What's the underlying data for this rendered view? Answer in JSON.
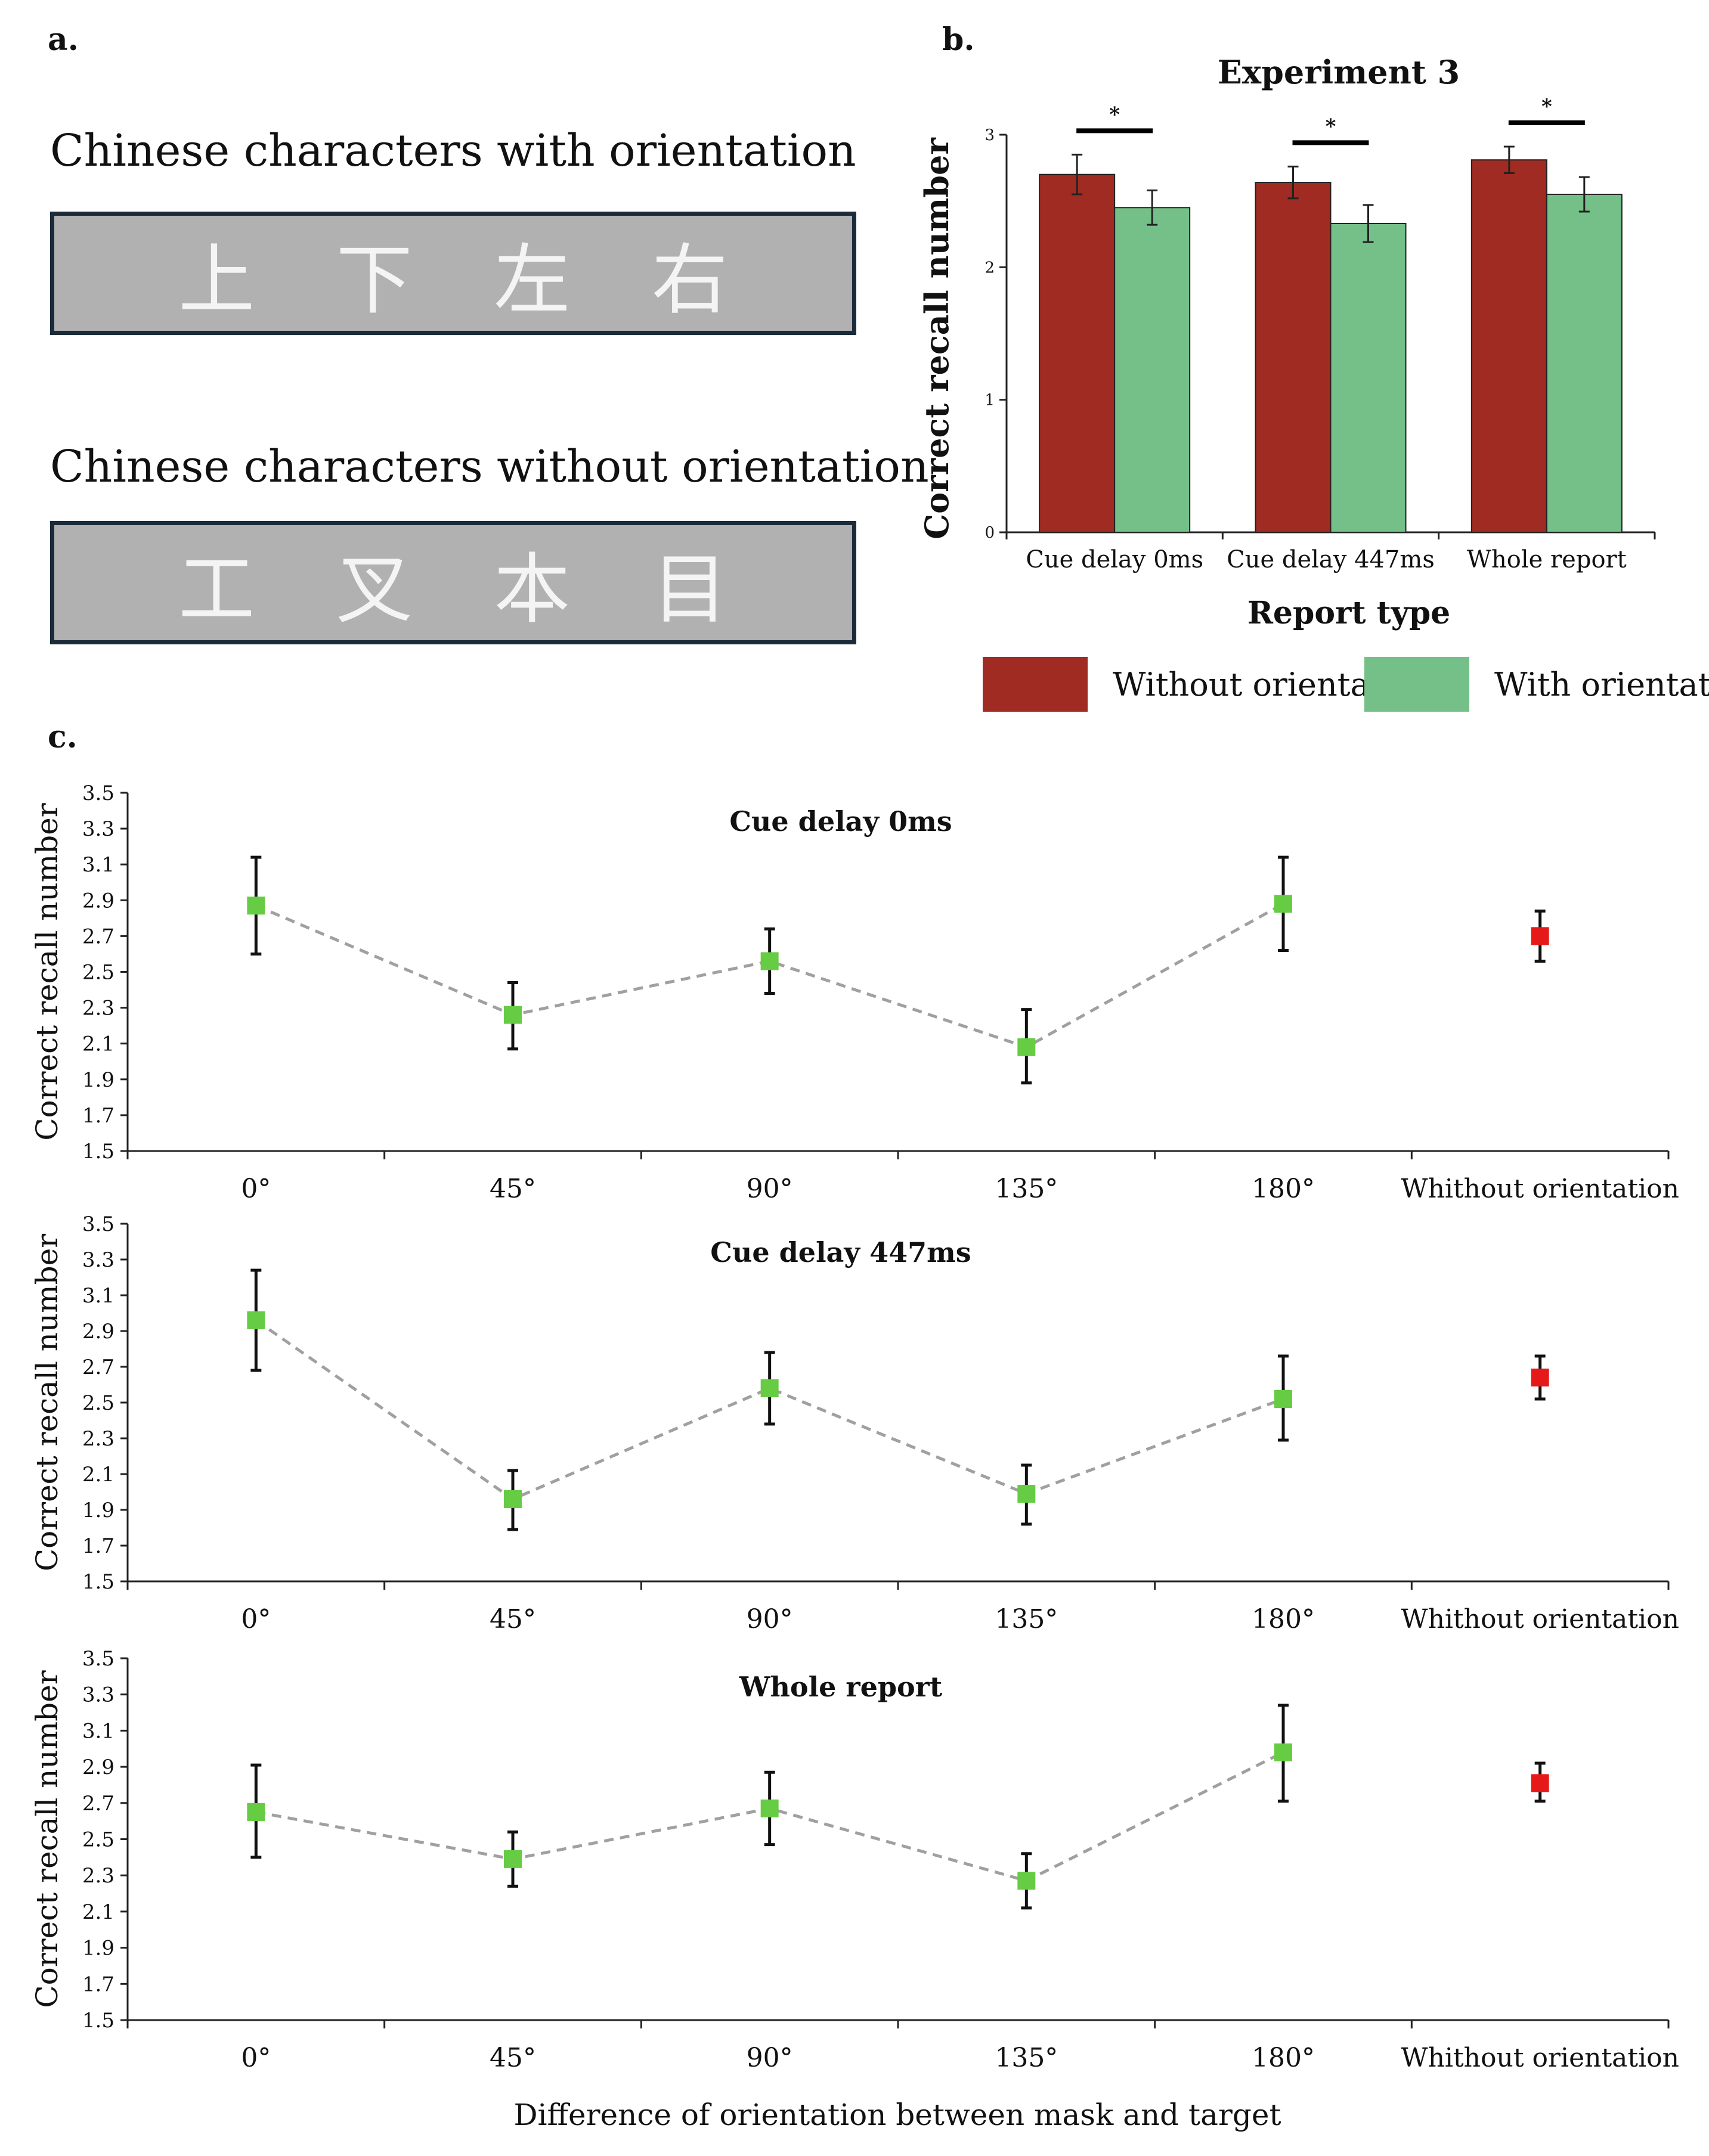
{
  "panel_a": {
    "label": "a.",
    "with_title": "Chinese characters with orientation",
    "with_chars": [
      "上",
      "下",
      "左",
      "右"
    ],
    "without_title": "Chinese characters without orientation",
    "without_chars": [
      "工",
      "叉",
      "本",
      "目"
    ]
  },
  "panel_b_label": "b.",
  "panel_c_label": "c.",
  "colors": {
    "without": "#a02b22",
    "with": "#74c088",
    "point_green": "#66cc44",
    "point_red": "#e51919",
    "line": "#a0a0a0"
  },
  "legend": {
    "without": "Without orientation",
    "with": "With orientation"
  },
  "chart_data": [
    {
      "type": "bar",
      "title": "Experiment 3",
      "xlabel": "Report type",
      "ylabel": "Correct recall number",
      "ylim": [
        0,
        3
      ],
      "yticks": [
        "0",
        "1",
        "2",
        "3"
      ],
      "categories": [
        "Cue delay 0ms",
        "Cue delay 447ms",
        "Whole report"
      ],
      "series": [
        {
          "name": "Without orientation",
          "values": [
            2.7,
            2.64,
            2.81
          ],
          "errors": [
            0.15,
            0.12,
            0.1
          ]
        },
        {
          "name": "With orientation",
          "values": [
            2.45,
            2.33,
            2.55
          ],
          "errors": [
            0.13,
            0.14,
            0.13
          ]
        }
      ],
      "significance": [
        "*",
        "*",
        "*"
      ]
    },
    {
      "type": "line",
      "title": "Cue delay 0ms",
      "ylabel": "Correct recall number",
      "xlabel": "",
      "ylim": [
        1.5,
        3.5
      ],
      "yticks": [
        "1.5",
        "1.7",
        "1.9",
        "2.1",
        "2.3",
        "2.5",
        "2.7",
        "2.9",
        "3.1",
        "3.3",
        "3.5"
      ],
      "categories": [
        "0°",
        "45°",
        "90°",
        "135°",
        "180°",
        "Whithout orientation"
      ],
      "values": [
        2.87,
        2.26,
        2.56,
        2.08,
        2.88,
        2.7
      ],
      "err_low": [
        2.6,
        2.07,
        2.38,
        1.88,
        2.62,
        2.56
      ],
      "err_high": [
        3.14,
        2.44,
        2.74,
        2.29,
        3.14,
        2.84
      ]
    },
    {
      "type": "line",
      "title": "Cue delay 447ms",
      "ylabel": "Correct recall number",
      "xlabel": "",
      "ylim": [
        1.5,
        3.5
      ],
      "yticks": [
        "1.5",
        "1.7",
        "1.9",
        "2.1",
        "2.3",
        "2.5",
        "2.7",
        "2.9",
        "3.1",
        "3.3",
        "3.5"
      ],
      "categories": [
        "0°",
        "45°",
        "90°",
        "135°",
        "180°",
        "Whithout orientation"
      ],
      "values": [
        2.96,
        1.96,
        2.58,
        1.99,
        2.52,
        2.64
      ],
      "err_low": [
        2.68,
        1.79,
        2.38,
        1.82,
        2.29,
        2.52
      ],
      "err_high": [
        3.24,
        2.12,
        2.78,
        2.15,
        2.76,
        2.76
      ]
    },
    {
      "type": "line",
      "title": "Whole report",
      "ylabel": "Correct recall number",
      "xlabel": "Difference of orientation between mask and target",
      "ylim": [
        1.5,
        3.5
      ],
      "yticks": [
        "1.5",
        "1.7",
        "1.9",
        "2.1",
        "2.3",
        "2.5",
        "2.7",
        "2.9",
        "3.1",
        "3.3",
        "3.5"
      ],
      "categories": [
        "0°",
        "45°",
        "90°",
        "135°",
        "180°",
        "Whithout orientation"
      ],
      "values": [
        2.65,
        2.39,
        2.67,
        2.27,
        2.98,
        2.81
      ],
      "err_low": [
        2.4,
        2.24,
        2.47,
        2.12,
        2.71,
        2.71
      ],
      "err_high": [
        2.91,
        2.54,
        2.87,
        2.42,
        3.24,
        2.92
      ]
    }
  ]
}
